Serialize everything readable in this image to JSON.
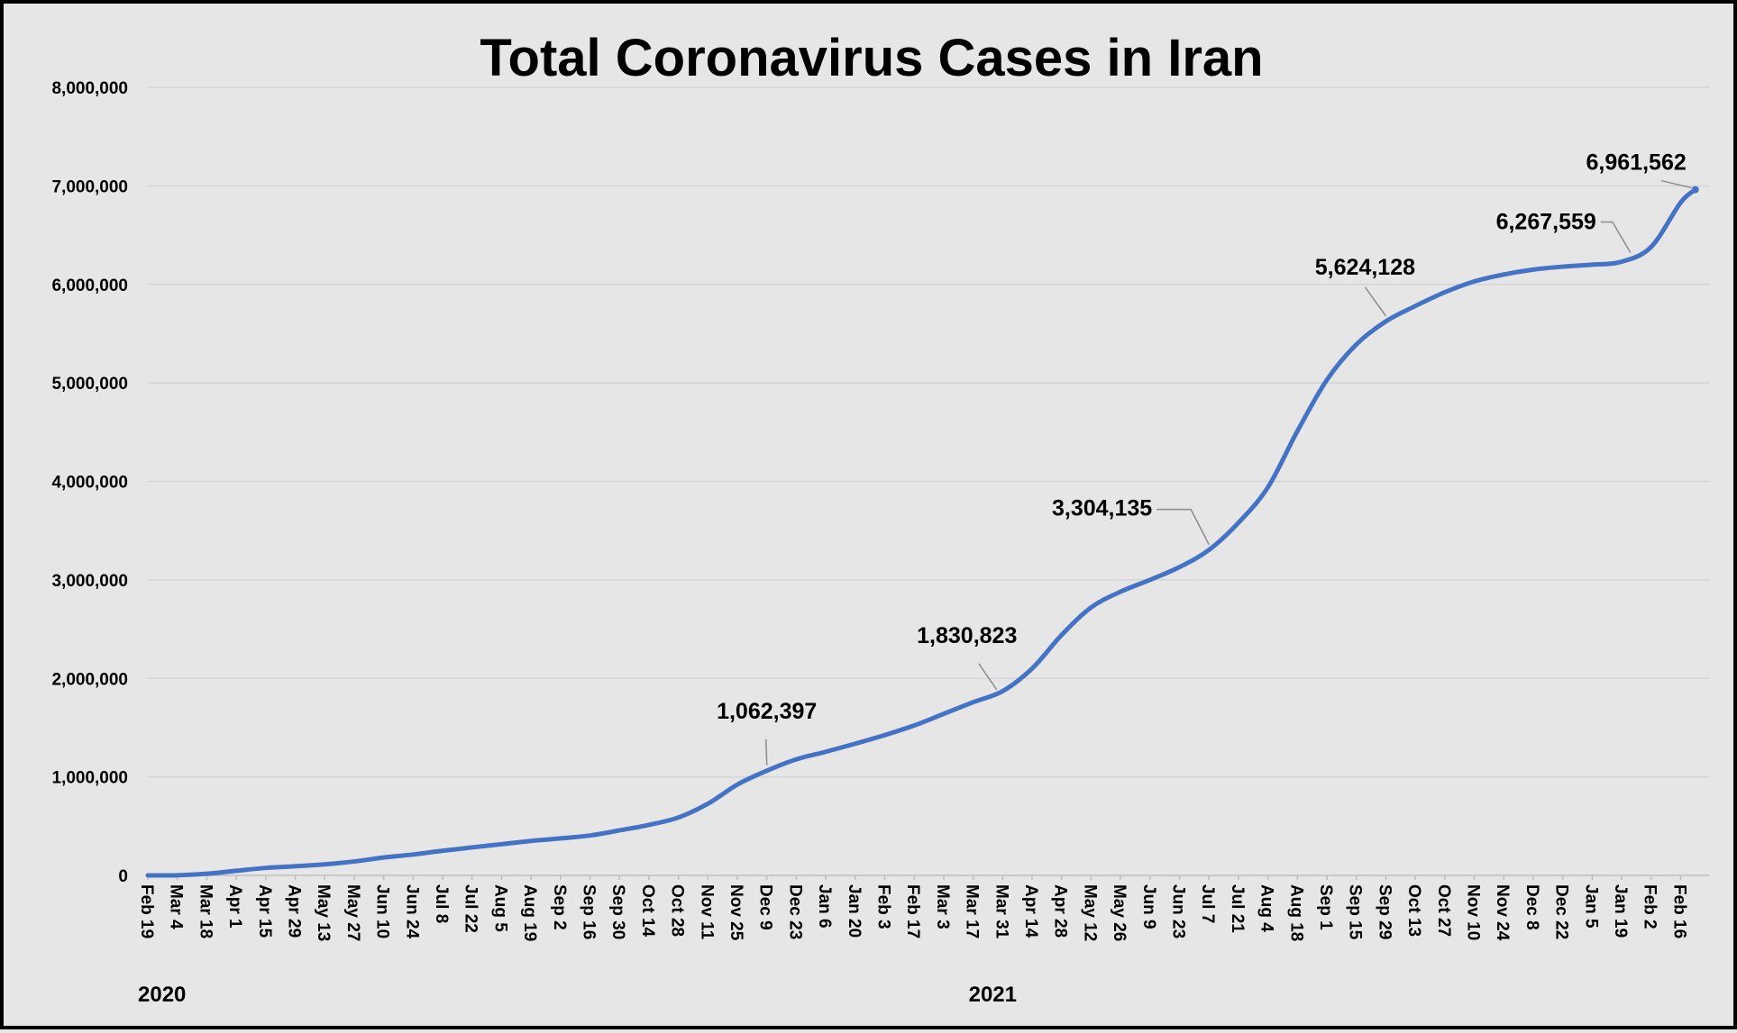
{
  "chart_data": {
    "type": "line",
    "title": "Total Coronavirus Cases in Iran",
    "xlabel": "",
    "ylabel": "",
    "ylim": [
      0,
      8000000
    ],
    "yticks": [
      "0",
      "1,000,000",
      "2,000,000",
      "3,000,000",
      "4,000,000",
      "5,000,000",
      "6,000,000",
      "7,000,000",
      "8,000,000"
    ],
    "ytick_values": [
      0,
      1000000,
      2000000,
      3000000,
      4000000,
      5000000,
      6000000,
      7000000,
      8000000
    ],
    "xticks": [
      "Feb 19",
      "Mar 4",
      "Mar 18",
      "Apr 1",
      "Apr 15",
      "Apr 29",
      "May 13",
      "May 27",
      "Jun 10",
      "Jun 24",
      "Jul 8",
      "Jul 22",
      "Aug 5",
      "Aug 19",
      "Sep 2",
      "Sep 16",
      "Sep 30",
      "Oct 14",
      "Oct 28",
      "Nov 11",
      "Nov 25",
      "Dec 9",
      "Dec 23",
      "Jan 6",
      "Jan 20",
      "Feb 3",
      "Feb 17",
      "Mar 3",
      "Mar 17",
      "Mar 31",
      "Apr 14",
      "Apr 28",
      "May 12",
      "May 26",
      "Jun 9",
      "Jun 23",
      "Jul 7",
      "Jul 21",
      "Aug 4",
      "Aug 18",
      "Sep 1",
      "Sep 15",
      "Sep 29",
      "Oct 13",
      "Oct 27",
      "Nov 10",
      "Nov 24",
      "Dec 8",
      "Dec 22",
      "Jan 5",
      "Jan 19",
      "Feb 2",
      "Feb 16"
    ],
    "year_labels": [
      {
        "text": "2020",
        "tick_index": 0
      },
      {
        "text": "2021",
        "tick_index": 29
      }
    ],
    "grid": true,
    "series": [
      {
        "color": "#4472c4",
        "x_tick_index": [
          0,
          1,
          2,
          3,
          4,
          5,
          6,
          7,
          8,
          9,
          10,
          11,
          12,
          13,
          14,
          15,
          16,
          17,
          18,
          19,
          20,
          21,
          22,
          23,
          24,
          25,
          26,
          27,
          28,
          29,
          30,
          31,
          32,
          33,
          34,
          35,
          36,
          37,
          38,
          39,
          40,
          41,
          42,
          43,
          44,
          45,
          46,
          47,
          48,
          49,
          50,
          51,
          52,
          52.5
        ],
        "values": [
          2,
          1000,
          17000,
          47000,
          76000,
          93000,
          112000,
          141000,
          182000,
          212000,
          250000,
          284000,
          317000,
          350000,
          376000,
          405000,
          457000,
          513000,
          588000,
          727000,
          922000,
          1062397,
          1178000,
          1255000,
          1337000,
          1424000,
          1522000,
          1640000,
          1758000,
          1870000,
          2100000,
          2440000,
          2720000,
          2880000,
          3000000,
          3130000,
          3304135,
          3580000,
          3940000,
          4510000,
          5030000,
          5390000,
          5624128,
          5780000,
          5920000,
          6030000,
          6100000,
          6150000,
          6180000,
          6200000,
          6230000,
          6380000,
          6830000,
          6961562
        ]
      }
    ],
    "annotations": [
      {
        "label": "1,062,397",
        "x_tick_index": 21,
        "value": 1062397
      },
      {
        "label": "1,830,823",
        "x_tick_index": 28.8,
        "value": 1830823
      },
      {
        "label": "3,304,135",
        "x_tick_index": 36,
        "value": 3304135
      },
      {
        "label": "5,624,128",
        "x_tick_index": 42,
        "value": 5624128
      },
      {
        "label": "6,267,559",
        "x_tick_index": 50.3,
        "value": 6267559
      },
      {
        "label": "6,961,562",
        "x_tick_index": 52.5,
        "value": 6961562
      }
    ]
  }
}
